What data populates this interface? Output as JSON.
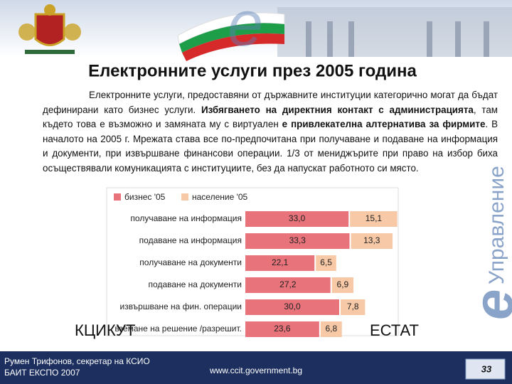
{
  "header": {
    "title": "Електронните услуги през 2005 година",
    "logo_letter": "е",
    "logo_text": "Управление"
  },
  "paragraph": [
    {
      "text": "Електронните услуги, предоставяни от държавните институции категорично могат да бъдат дефинирани като бизнес услуги. ",
      "bold": false
    },
    {
      "text": "Избягването на директния контакт с администрацията",
      "bold": true
    },
    {
      "text": ", там където това е възможно и замяната му с виртуален ",
      "bold": false
    },
    {
      "text": "е привлекателна алтернатива за фирмите",
      "bold": true
    },
    {
      "text": ". В началото на 2005 г. Мрежата става все по-предпочитана при получаване и подаване на информация и документи, при извършване финансови операции. 1/3 от мениджърите при право на избор биха осъществявали комуникацията с институциите, без да напускат работното си място.",
      "bold": false
    }
  ],
  "chart_data": {
    "type": "bar",
    "orientation": "horizontal",
    "stacked": true,
    "categories": [
      "получаване на информация",
      "подаване на информация",
      "получаване на документи",
      "подаване на документи",
      "извършване на фин. операции",
      "вземане на решение /разрешит."
    ],
    "series": [
      {
        "name": "бизнес '05",
        "color": "#e8737b",
        "values": [
          33.0,
          33.3,
          22.1,
          27.2,
          30.0,
          23.6
        ],
        "value_labels": [
          "33,0",
          "33,3",
          "22,1",
          "27,2",
          "30,0",
          "23,6"
        ]
      },
      {
        "name": "население '05",
        "color": "#f8c9a6",
        "values": [
          15.1,
          13.3,
          6.5,
          6.9,
          7.8,
          6.8
        ],
        "value_labels": [
          "15,1",
          "13,3",
          "6,5",
          "6,9",
          "7,8",
          "6,8"
        ]
      }
    ],
    "legend": "top-left"
  },
  "overlay": {
    "left": "КЦИКУТ",
    "right": "ЕСТАТ"
  },
  "footer": {
    "author": "Румен Трифонов, секретар на КСИО",
    "event": "БАИТ ЕКСПО 2007",
    "url": "www.ccit.government.bg",
    "page": "33"
  }
}
